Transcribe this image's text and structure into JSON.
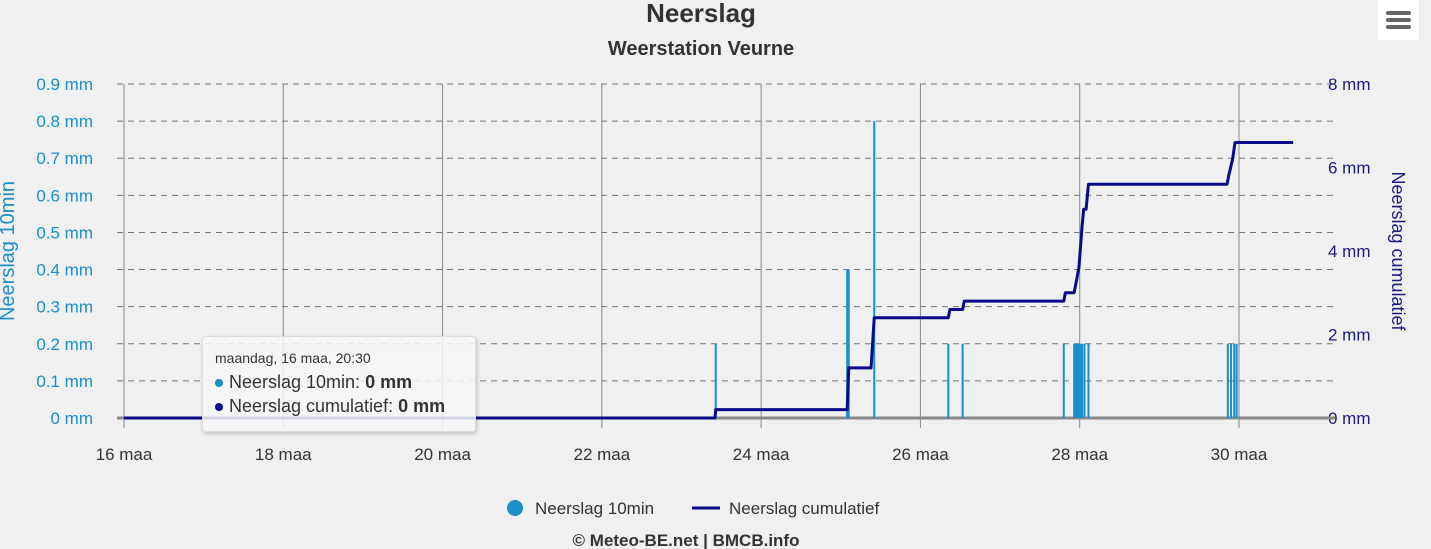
{
  "chart_data": {
    "type": "bar+line",
    "title": "Neerslag",
    "subtitle": "Weerstation Veurne",
    "ylabel_left": "Neerslag 10min",
    "ylabel_right": "Neerslag cumulatief",
    "ylim_left": [
      0,
      0.9
    ],
    "ylim_right": [
      0,
      8
    ],
    "xlim_days": [
      16,
      30.7
    ],
    "x_ticks": [
      {
        "day": 16,
        "label": "16 maa"
      },
      {
        "day": 18,
        "label": "18 maa"
      },
      {
        "day": 20,
        "label": "20 maa"
      },
      {
        "day": 22,
        "label": "22 maa"
      },
      {
        "day": 24,
        "label": "24 maa"
      },
      {
        "day": 26,
        "label": "26 maa"
      },
      {
        "day": 28,
        "label": "28 maa"
      },
      {
        "day": 30,
        "label": "30 maa"
      }
    ],
    "y_ticks_left": [
      "0 mm",
      "0.1 mm",
      "0.2 mm",
      "0.3 mm",
      "0.4 mm",
      "0.5 mm",
      "0.6 mm",
      "0.7 mm",
      "0.8 mm",
      "0.9 mm"
    ],
    "y_ticks_right": [
      "0 mm",
      "2 mm",
      "4 mm",
      "6 mm",
      "8 mm"
    ],
    "series": [
      {
        "name": "Neerslag 10min",
        "type": "bar",
        "color": "#1a8fc9",
        "points": [
          [
            23.43,
            0.2
          ],
          [
            25.08,
            0.4
          ],
          [
            25.1,
            0.4
          ],
          [
            25.42,
            0.8
          ],
          [
            26.35,
            0.2
          ],
          [
            26.53,
            0.2
          ],
          [
            27.8,
            0.2
          ],
          [
            27.93,
            0.2
          ],
          [
            27.95,
            0.2
          ],
          [
            27.97,
            0.2
          ],
          [
            27.99,
            0.2
          ],
          [
            28.01,
            0.2
          ],
          [
            28.03,
            0.2
          ],
          [
            28.06,
            0.2
          ],
          [
            28.11,
            0.2
          ],
          [
            29.86,
            0.2
          ],
          [
            29.9,
            0.2
          ],
          [
            29.94,
            0.2
          ],
          [
            29.97,
            0.2
          ]
        ]
      },
      {
        "name": "Neerslag cumulatief",
        "type": "line",
        "color": "#0b0b8a",
        "points": [
          [
            16,
            0
          ],
          [
            23.42,
            0
          ],
          [
            23.43,
            0.2
          ],
          [
            25.08,
            0.2
          ],
          [
            25.1,
            1.2
          ],
          [
            25.38,
            1.2
          ],
          [
            25.42,
            2.4
          ],
          [
            26.35,
            2.4
          ],
          [
            26.37,
            2.6
          ],
          [
            26.53,
            2.6
          ],
          [
            26.55,
            2.8
          ],
          [
            27.8,
            2.8
          ],
          [
            27.82,
            3.0
          ],
          [
            27.93,
            3.0
          ],
          [
            27.95,
            3.2
          ],
          [
            27.99,
            3.6
          ],
          [
            28.03,
            4.6
          ],
          [
            28.05,
            5.0
          ],
          [
            28.08,
            5.0
          ],
          [
            28.11,
            5.6
          ],
          [
            29.85,
            5.6
          ],
          [
            29.87,
            5.8
          ],
          [
            29.92,
            6.2
          ],
          [
            29.95,
            6.6
          ],
          [
            30.68,
            6.6
          ]
        ]
      }
    ],
    "legend": "bottom-center"
  },
  "tooltip": {
    "header": "maandag, 16 maa, 20:30",
    "row1_label": "Neerslag 10min: ",
    "row1_value": "0 mm",
    "row2_label": "Neerslag cumulatief: ",
    "row2_value": "0 mm"
  },
  "credits": "© Meteo-BE.net | BMCB.info"
}
